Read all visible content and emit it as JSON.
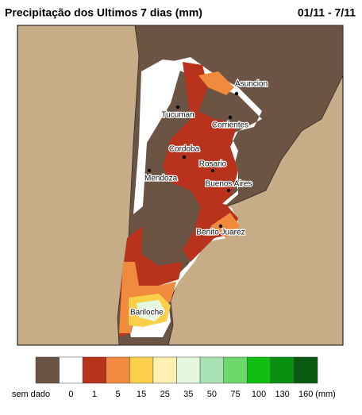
{
  "header": {
    "title": "Precipitação dos Ultimos 7 dias (mm)",
    "date_range": "01/11 - 7/11"
  },
  "cities": [
    "Asuncion",
    "Tucuman",
    "Corrientes",
    "Cordoba",
    "Rosario",
    "Buenos Aires",
    "Mendoza",
    "Benito Juarez",
    "Bariloche"
  ],
  "legend": {
    "unit": "(mm)",
    "items": [
      {
        "label": "sem dado",
        "color": "#6b5443"
      },
      {
        "label": 0,
        "color": "#ffffff"
      },
      {
        "label": 1,
        "color": "#b8321c"
      },
      {
        "label": 5,
        "color": "#f08a3c"
      },
      {
        "label": 15,
        "color": "#fbcf4a"
      },
      {
        "label": 25,
        "color": "#fdf0b0"
      },
      {
        "label": 35,
        "color": "#e4f8e0"
      },
      {
        "label": 50,
        "color": "#a9e3b4"
      },
      {
        "label": 75,
        "color": "#6cd86c"
      },
      {
        "label": 100,
        "color": "#10c010"
      },
      {
        "label": 130,
        "color": "#0a9010"
      },
      {
        "label": 160,
        "color": "#075a10"
      }
    ]
  }
}
